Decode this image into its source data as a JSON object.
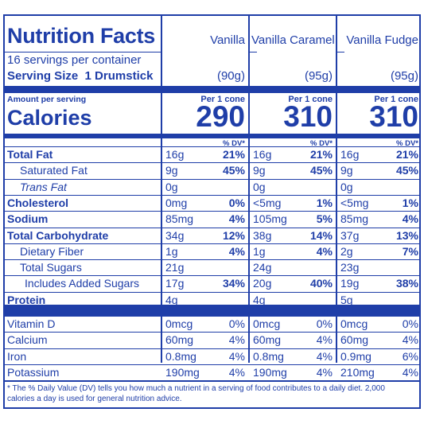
{
  "title": "Nutrition Facts",
  "columns": [
    "Vanilla",
    "Vanilla Caramel",
    "Vanilla Fudge"
  ],
  "servings_per_container": "16 servings per container",
  "serving_size_label": "Serving Size",
  "serving_size_value": "1 Drumstick",
  "serving_weights": [
    "(90g)",
    "(95g)",
    "(95g)"
  ],
  "amount_per_serving": "Amount per serving",
  "calories_label": "Calories",
  "per_cone": "Per 1 cone",
  "calories": [
    "290",
    "310",
    "310"
  ],
  "dv_header": "% DV*",
  "rows": [
    {
      "label": "Total Fat",
      "bold": true,
      "indent": 0,
      "cols": [
        [
          "16g",
          "21%"
        ],
        [
          "16g",
          "21%"
        ],
        [
          "16g",
          "21%"
        ]
      ]
    },
    {
      "label": "Saturated Fat",
      "bold": false,
      "indent": 1,
      "cols": [
        [
          "9g",
          "45%"
        ],
        [
          "9g",
          "45%"
        ],
        [
          "9g",
          "45%"
        ]
      ]
    },
    {
      "label": "Trans Fat",
      "bold": false,
      "indent": 1,
      "cols": [
        [
          "0g",
          ""
        ],
        [
          "0g",
          ""
        ],
        [
          "0g",
          ""
        ]
      ]
    },
    {
      "label": "Cholesterol",
      "bold": true,
      "indent": 0,
      "cols": [
        [
          "0mg",
          "0%"
        ],
        [
          "<5mg",
          "1%"
        ],
        [
          "<5mg",
          "1%"
        ]
      ]
    },
    {
      "label": "Sodium",
      "bold": true,
      "indent": 0,
      "cols": [
        [
          "85mg",
          "4%"
        ],
        [
          "105mg",
          "5%"
        ],
        [
          "85mg",
          "4%"
        ]
      ]
    },
    {
      "label": "Total Carbohydrate",
      "bold": true,
      "indent": 0,
      "cols": [
        [
          "34g",
          "12%"
        ],
        [
          "38g",
          "14%"
        ],
        [
          "37g",
          "13%"
        ]
      ]
    },
    {
      "label": "Dietary Fiber",
      "bold": false,
      "indent": 1,
      "cols": [
        [
          "1g",
          "4%"
        ],
        [
          "1g",
          "4%"
        ],
        [
          "2g",
          "7%"
        ]
      ]
    },
    {
      "label": "Total Sugars",
      "bold": false,
      "indent": 1,
      "cols": [
        [
          "21g",
          ""
        ],
        [
          "24g",
          ""
        ],
        [
          "23g",
          ""
        ]
      ]
    },
    {
      "label": "Includes Added Sugars",
      "bold": false,
      "indent": 2,
      "cols": [
        [
          "17g",
          "34%"
        ],
        [
          "20g",
          "40%"
        ],
        [
          "19g",
          "38%"
        ]
      ]
    },
    {
      "label": "Protein",
      "bold": true,
      "indent": 0,
      "cols": [
        [
          "4g",
          ""
        ],
        [
          "4g",
          ""
        ],
        [
          "5g",
          ""
        ]
      ]
    }
  ],
  "vitamins": [
    {
      "label": "Vitamin D",
      "cols": [
        [
          "0mcg",
          "0%"
        ],
        [
          "0mcg",
          "0%"
        ],
        [
          "0mcg",
          "0%"
        ]
      ]
    },
    {
      "label": "Calcium",
      "cols": [
        [
          "60mg",
          "4%"
        ],
        [
          "60mg",
          "4%"
        ],
        [
          "60mg",
          "4%"
        ]
      ]
    },
    {
      "label": "Iron",
      "cols": [
        [
          "0.8mg",
          "4%"
        ],
        [
          "0.8mg",
          "4%"
        ],
        [
          "0.9mg",
          "6%"
        ]
      ]
    },
    {
      "label": "Potassium",
      "cols": [
        [
          "190mg",
          "4%"
        ],
        [
          "190mg",
          "4%"
        ],
        [
          "210mg",
          "4%"
        ]
      ]
    }
  ],
  "footnote": "* The % Daily Value (DV) tells you how much a nutrient in a serving of food contributes to a daily diet. 2,000 calories a day is used for general nutrition advice.",
  "colors": {
    "ink": "#1f3ea8",
    "background": "#ffffff"
  }
}
